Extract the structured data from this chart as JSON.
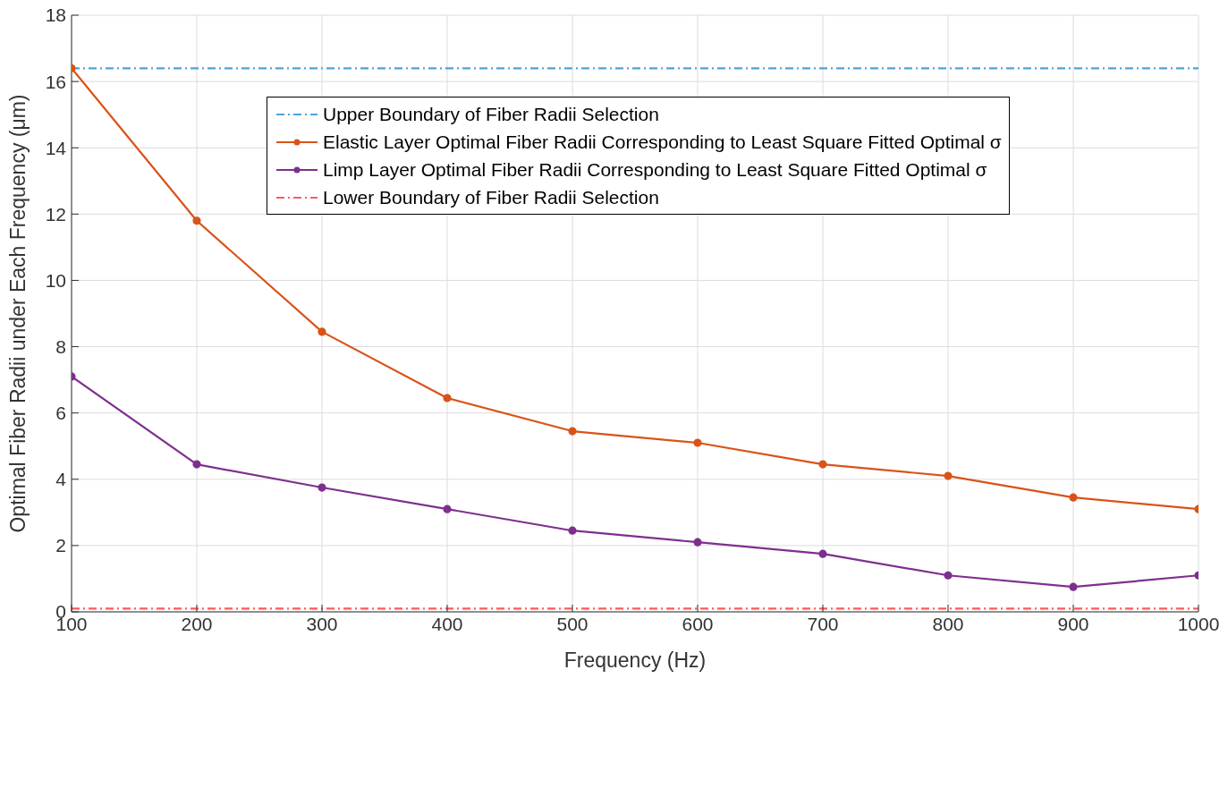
{
  "chart_data": {
    "type": "line",
    "xlabel": "Frequency (Hz)",
    "ylabel": "Optimal Fiber Radii under Each Frequency (μm)",
    "xlim": [
      100,
      1000
    ],
    "xticks": [
      100,
      200,
      300,
      400,
      500,
      600,
      700,
      800,
      900,
      1000
    ],
    "ylim": [
      0,
      18
    ],
    "yticks": [
      0,
      2,
      4,
      6,
      8,
      10,
      12,
      14,
      16,
      18
    ],
    "grid": true,
    "legend": "top",
    "marker": "circle",
    "line_style": "solid",
    "series": [
      {
        "name": "Upper Boundary of Fiber Radii Selection",
        "color": "#4da3d8",
        "x": [
          100,
          1000
        ],
        "values": [
          16.4,
          16.4
        ],
        "marker": "none",
        "line_style": "dashed"
      },
      {
        "name": "Elastic Layer Optimal Fiber Radii Corresponding to Least Square Fitted Optimal σ",
        "color": "#d95319",
        "x": [
          100,
          200,
          300,
          400,
          500,
          600,
          700,
          800,
          900,
          1000
        ],
        "values": [
          16.4,
          11.8,
          8.45,
          6.45,
          5.45,
          5.1,
          4.45,
          4.1,
          3.45,
          3.1
        ]
      },
      {
        "name": "Limp Layer Optimal Fiber Radii Corresponding to Least Square Fitted Optimal σ",
        "color": "#7e2f8e",
        "x": [
          100,
          200,
          300,
          400,
          500,
          600,
          700,
          800,
          900,
          1000
        ],
        "values": [
          7.1,
          4.45,
          3.75,
          3.1,
          2.45,
          2.1,
          1.75,
          1.1,
          0.75,
          1.1
        ]
      },
      {
        "name": "Lower Boundary of Fiber Radii Selection",
        "color": "#ff5a5a",
        "x": [
          100,
          1000
        ],
        "values": [
          0.1,
          0.1
        ],
        "marker": "none",
        "line_style": "dashed"
      }
    ]
  }
}
